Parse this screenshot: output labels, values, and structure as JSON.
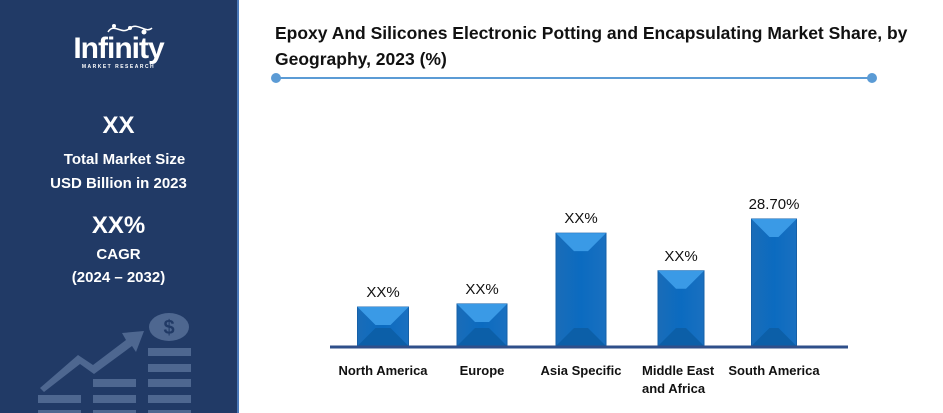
{
  "sidebar": {
    "logo_text": "Infinity",
    "logo_sub": "MARKET RESEARCH",
    "market_size_value": "XX",
    "market_size_label_1": "Total Market Size",
    "market_size_label_2": "USD Billion in 2023",
    "cagr_value": "XX%",
    "cagr_label": "CAGR",
    "cagr_period": "(2024 – 2032)",
    "background": "#213a66"
  },
  "chart_data": {
    "type": "bar",
    "title": "Epoxy And Silicones Electronic Potting and Encapsulating Market  Share, by Geography, 2023 (%)",
    "categories": [
      "North America",
      "Europe",
      "Asia Specific",
      "Middle East and Africa",
      "South America"
    ],
    "values": [
      8.8,
      9.5,
      25.5,
      17.0,
      28.7
    ],
    "data_labels": [
      "XX%",
      "XX%",
      "XX%",
      "XX%",
      "28.70%"
    ],
    "xlabel": "",
    "ylabel": "",
    "ylim": [
      0,
      30
    ],
    "grid": false,
    "bar_color": "#1f77c8"
  }
}
